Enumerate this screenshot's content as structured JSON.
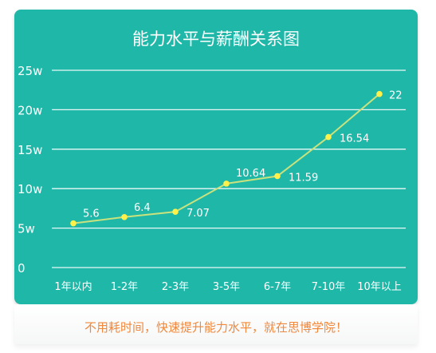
{
  "caption": "不用耗时间，快速提升能力水平，就在思博学院！",
  "colors": {
    "card_bg": "#1fb8a8",
    "grid": "#ffffff",
    "line": "#c9e27d",
    "point": "#fff04a",
    "caption": "#f1883b"
  },
  "chart_data": {
    "type": "line",
    "title": "能力水平与薪酬关系图",
    "xlabel": "",
    "ylabel": "",
    "categories": [
      "1年以内",
      "1-2年",
      "2-3年",
      "3-5年",
      "6-7年",
      "7-10年",
      "10年以上"
    ],
    "values": [
      5.6,
      6.4,
      7.07,
      10.64,
      11.59,
      16.54,
      22
    ],
    "value_labels": [
      "5.6",
      "6.4",
      "7.07",
      "10.64",
      "11.59",
      "16.54",
      "22"
    ],
    "yticks": [
      0,
      5,
      10,
      15,
      20,
      25
    ],
    "ytick_labels": [
      "0",
      "5w",
      "10w",
      "15w",
      "20w",
      "25w"
    ],
    "ylim": [
      0,
      25
    ],
    "grid": true,
    "legend": "none"
  }
}
